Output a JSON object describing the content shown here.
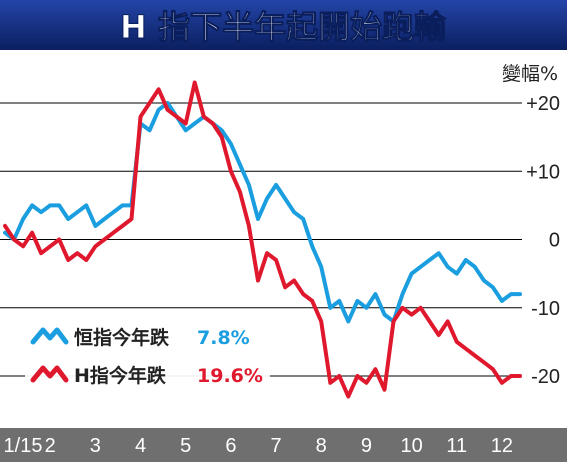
{
  "title": "H 指下半年起開始跑輸",
  "colors": {
    "title_bg_top": "#1a3a8c",
    "title_bg_bottom": "#0a1e5c",
    "axis_bar": "#6f6f6f",
    "gridline": "#000000",
    "hsi": "#1a9ee0",
    "hscei": "#e0182d",
    "text_dark": "#222222"
  },
  "chart_data": {
    "type": "line",
    "ylabel": "變幅%",
    "ylim": [
      -25,
      25
    ],
    "yticks": [
      {
        "value": 20,
        "label": "+20"
      },
      {
        "value": 10,
        "label": "+10"
      },
      {
        "value": 0,
        "label": "0"
      },
      {
        "value": -10,
        "label": "-10"
      },
      {
        "value": -20,
        "label": "-20"
      }
    ],
    "xlim": [
      0,
      11.4
    ],
    "xticks": [
      {
        "value": 0,
        "label": "1/15"
      },
      {
        "value": 1,
        "label": "2"
      },
      {
        "value": 2,
        "label": "3"
      },
      {
        "value": 3,
        "label": "4"
      },
      {
        "value": 4,
        "label": "5"
      },
      {
        "value": 5,
        "label": "6"
      },
      {
        "value": 6,
        "label": "7"
      },
      {
        "value": 7,
        "label": "8"
      },
      {
        "value": 8,
        "label": "9"
      },
      {
        "value": 9,
        "label": "10"
      },
      {
        "value": 10,
        "label": "11"
      },
      {
        "value": 11,
        "label": "12"
      }
    ],
    "grid": "horizontal",
    "legend_position": "bottom-left",
    "series": [
      {
        "name": "恒指今年跌",
        "change_label": "7.8%",
        "color": "#1a9ee0",
        "x": [
          0,
          0.2,
          0.4,
          0.6,
          0.8,
          1.0,
          1.2,
          1.4,
          1.6,
          1.8,
          2.0,
          2.2,
          2.4,
          2.6,
          2.8,
          3.0,
          3.2,
          3.4,
          3.6,
          3.8,
          4.0,
          4.2,
          4.4,
          4.6,
          4.8,
          5.0,
          5.2,
          5.4,
          5.6,
          5.8,
          6.0,
          6.2,
          6.4,
          6.6,
          6.8,
          7.0,
          7.2,
          7.4,
          7.6,
          7.8,
          8.0,
          8.2,
          8.4,
          8.6,
          8.8,
          9.0,
          9.2,
          9.4,
          9.6,
          9.8,
          10.0,
          10.2,
          10.4,
          10.6,
          10.8,
          11.0,
          11.2,
          11.4
        ],
        "y": [
          1,
          0,
          3,
          5,
          4,
          5,
          5,
          3,
          4,
          5,
          2,
          3,
          4,
          5,
          5,
          17,
          16,
          19,
          20,
          18,
          16,
          17,
          18,
          17,
          16,
          14,
          11,
          8,
          3,
          6,
          8,
          6,
          4,
          3,
          -1,
          -4,
          -10,
          -9,
          -12,
          -9,
          -10,
          -8,
          -11,
          -12,
          -8,
          -5,
          -4,
          -3,
          -2,
          -4,
          -5,
          -3,
          -4,
          -6,
          -7,
          -9,
          -8,
          -8
        ]
      },
      {
        "name": "H指今年跌",
        "change_label": "19.6%",
        "color": "#e0182d",
        "x": [
          0,
          0.2,
          0.4,
          0.6,
          0.8,
          1.0,
          1.2,
          1.4,
          1.6,
          1.8,
          2.0,
          2.2,
          2.4,
          2.6,
          2.8,
          3.0,
          3.2,
          3.4,
          3.6,
          3.8,
          4.0,
          4.2,
          4.4,
          4.6,
          4.8,
          5.0,
          5.2,
          5.4,
          5.6,
          5.8,
          6.0,
          6.2,
          6.4,
          6.6,
          6.8,
          7.0,
          7.2,
          7.4,
          7.6,
          7.8,
          8.0,
          8.2,
          8.4,
          8.6,
          8.8,
          9.0,
          9.2,
          9.4,
          9.6,
          9.8,
          10.0,
          10.2,
          10.4,
          10.6,
          10.8,
          11.0,
          11.2,
          11.4
        ],
        "y": [
          2,
          0,
          -1,
          1,
          -2,
          -1,
          0,
          -3,
          -2,
          -3,
          -1,
          0,
          1,
          2,
          3,
          18,
          20,
          22,
          19,
          18,
          17,
          23,
          18,
          17,
          15,
          10,
          7,
          2,
          -6,
          -2,
          -3,
          -7,
          -6,
          -8,
          -9,
          -12,
          -21,
          -20,
          -23,
          -20,
          -21,
          -19,
          -22,
          -12,
          -10,
          -11,
          -10,
          -12,
          -14,
          -12,
          -15,
          -16,
          -17,
          -18,
          -19,
          -21,
          -20,
          -20
        ]
      }
    ]
  },
  "icons": {
    "hsi_legend": "blue-zigzag-line-icon",
    "hscei_legend": "red-zigzag-line-icon"
  }
}
